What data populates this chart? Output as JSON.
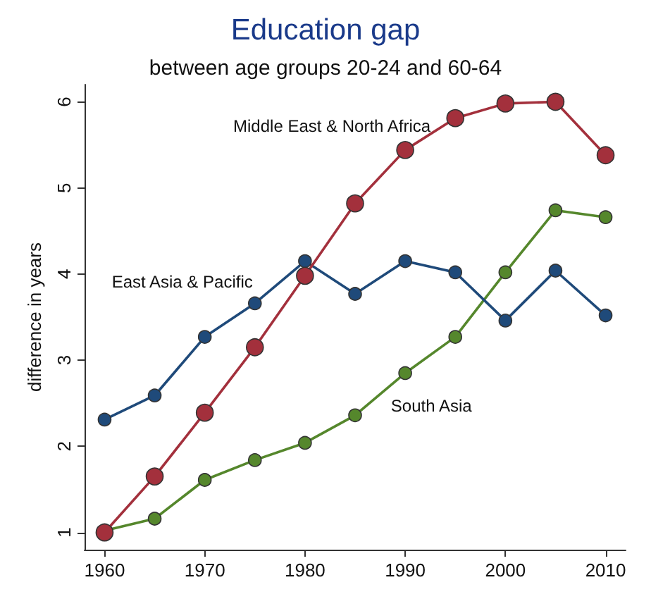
{
  "chart_data": {
    "type": "line",
    "title": "Education gap",
    "subtitle": "between age groups 20-24 and 60-64",
    "ylabel": "difference in years",
    "x": [
      1960,
      1965,
      1970,
      1975,
      1980,
      1985,
      1990,
      1995,
      2000,
      2005,
      2010
    ],
    "xlim": [
      1958,
      2012
    ],
    "xticks": [
      1960,
      1970,
      1980,
      1990,
      2000,
      2010
    ],
    "ylim": [
      0.8,
      6.2
    ],
    "yticks": [
      1,
      2,
      3,
      4,
      5,
      6
    ],
    "grid": false,
    "legend": false,
    "marker": "circle",
    "line_style": "solid",
    "series": [
      {
        "name": "Middle East & North Africa",
        "color": "#a3303c",
        "values": [
          1.0,
          1.65,
          2.39,
          3.15,
          3.98,
          4.82,
          5.44,
          5.81,
          5.98,
          6.0,
          5.38
        ]
      },
      {
        "name": "East Asia & Pacific",
        "color": "#1f4a7a",
        "values": [
          2.31,
          2.59,
          3.27,
          3.66,
          4.15,
          3.77,
          4.15,
          4.02,
          3.46,
          4.04,
          3.52
        ]
      },
      {
        "name": "South Asia",
        "color": "#55872c",
        "values": [
          1.02,
          1.16,
          1.61,
          1.84,
          2.04,
          2.36,
          2.85,
          3.27,
          4.02,
          4.74,
          4.66
        ]
      }
    ]
  }
}
